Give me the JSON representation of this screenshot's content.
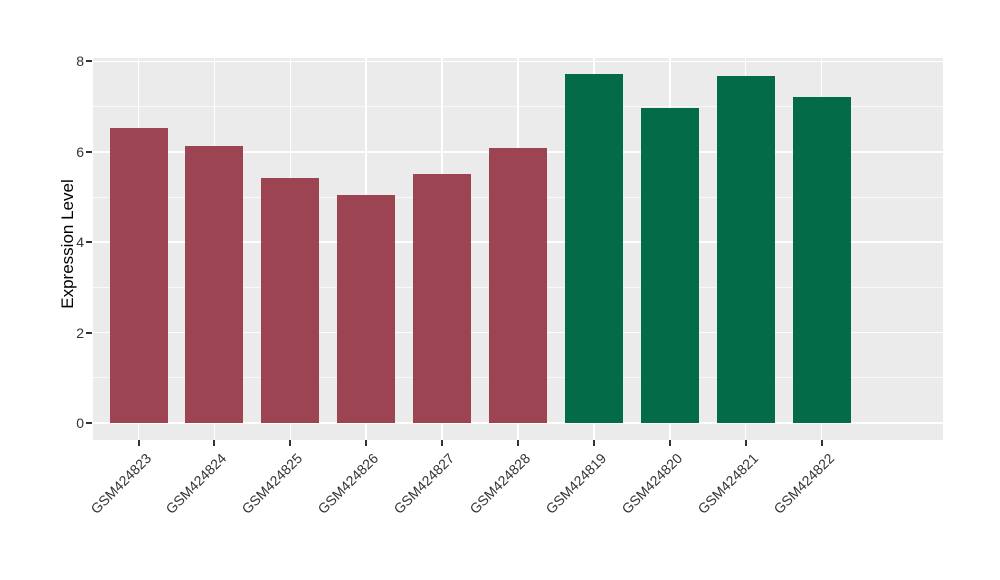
{
  "chart_data": {
    "type": "bar",
    "title": "",
    "xlabel": "",
    "ylabel": "Expression Level",
    "categories": [
      "GSM424823",
      "GSM424824",
      "GSM424825",
      "GSM424826",
      "GSM424827",
      "GSM424828",
      "GSM424819",
      "GSM424820",
      "GSM424821",
      "GSM424822"
    ],
    "values": [
      6.53,
      6.13,
      5.43,
      5.05,
      5.52,
      6.08,
      7.72,
      6.98,
      7.67,
      7.21
    ],
    "bar_colors": [
      "#9C4452",
      "#9C4452",
      "#9C4452",
      "#9C4452",
      "#9C4452",
      "#9C4452",
      "#046B49",
      "#046B49",
      "#046B49",
      "#046B49"
    ],
    "yticks": [
      0,
      2,
      4,
      6,
      8
    ],
    "minor_yticks": [
      1,
      3,
      5,
      7
    ],
    "ylim": [
      -0.39,
      8.08
    ],
    "grid": true,
    "legend": false,
    "x_label_rotation_deg": 45,
    "style": {
      "figure_background": "#FFFFFF",
      "panel_background": "#EBEBEB",
      "grid_major_color": "#FFFFFF",
      "grid_minor_color": "#FFFFFF",
      "tick_mark_color": "#333333",
      "tick_label_color": "#333333",
      "axis_title_color": "#000000"
    }
  }
}
